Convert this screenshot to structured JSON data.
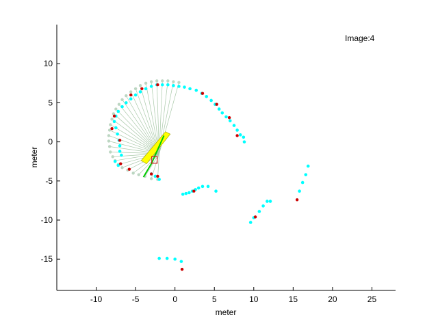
{
  "chart_data": {
    "type": "scatter",
    "title": "",
    "xlabel": "meter",
    "ylabel": "meter",
    "xlim": [
      -15,
      28
    ],
    "ylim": [
      -19,
      15
    ],
    "xticks": [
      -10,
      -5,
      0,
      5,
      10,
      15,
      20,
      25
    ],
    "yticks": [
      -15,
      -10,
      -5,
      0,
      5,
      10
    ],
    "grid": false,
    "annotation": "Image:4",
    "sensor_origin": [
      -2.0,
      -1.5
    ],
    "colors": {
      "scan": "#bcd6c2",
      "ray": "#a8c8a8",
      "landmark": "#00ffff",
      "feature": "#cc0000",
      "robot_body": "#ffff00",
      "robot_path": "#00cc00",
      "robot_marker": "#cc0000"
    },
    "scan_points": [
      [
        -2.2,
        -4.8
      ],
      [
        -3.0,
        -4.7
      ],
      [
        -3.8,
        -4.4
      ],
      [
        -4.6,
        -4.2
      ],
      [
        -5.3,
        -4.0
      ],
      [
        -6.0,
        -3.6
      ],
      [
        -6.7,
        -3.3
      ],
      [
        -7.2,
        -2.9
      ],
      [
        -7.6,
        -2.4
      ],
      [
        -7.9,
        -1.9
      ],
      [
        -8.2,
        -1.3
      ],
      [
        -8.3,
        -0.6
      ],
      [
        -8.4,
        0.1
      ],
      [
        -8.4,
        0.8
      ],
      [
        -8.3,
        1.5
      ],
      [
        -8.2,
        2.2
      ],
      [
        -8.0,
        2.9
      ],
      [
        -7.8,
        3.6
      ],
      [
        -7.5,
        4.2
      ],
      [
        -7.1,
        4.8
      ],
      [
        -6.7,
        5.4
      ],
      [
        -6.2,
        5.9
      ],
      [
        -5.6,
        6.4
      ],
      [
        -5.0,
        6.8
      ],
      [
        -4.4,
        7.2
      ],
      [
        -3.7,
        7.5
      ],
      [
        -3.0,
        7.7
      ],
      [
        -2.3,
        7.8
      ],
      [
        -1.6,
        7.8
      ],
      [
        -0.9,
        7.8
      ],
      [
        -0.2,
        7.7
      ],
      [
        0.5,
        7.6
      ]
    ],
    "landmarks": [
      [
        -7.2,
        -3.0
      ],
      [
        -7.6,
        -2.5
      ],
      [
        -6.8,
        -1.7
      ],
      [
        -7.0,
        -1.2
      ],
      [
        -7.0,
        -0.5
      ],
      [
        -7.1,
        0.2
      ],
      [
        -7.3,
        1.0
      ],
      [
        -7.5,
        1.8
      ],
      [
        -7.7,
        2.6
      ],
      [
        -7.5,
        3.3
      ],
      [
        -7.2,
        3.9
      ],
      [
        -6.7,
        4.5
      ],
      [
        -6.2,
        5.0
      ],
      [
        -5.6,
        5.5
      ],
      [
        -5.0,
        6.0
      ],
      [
        -4.4,
        6.4
      ],
      [
        -3.7,
        6.8
      ],
      [
        -3.0,
        7.1
      ],
      [
        -2.3,
        7.3
      ],
      [
        -1.6,
        7.3
      ],
      [
        -0.9,
        7.3
      ],
      [
        -0.2,
        7.2
      ],
      [
        0.5,
        7.1
      ],
      [
        1.2,
        7.0
      ],
      [
        1.9,
        6.8
      ],
      [
        2.7,
        6.6
      ],
      [
        3.4,
        6.2
      ],
      [
        4.0,
        5.8
      ],
      [
        4.6,
        5.3
      ],
      [
        5.1,
        4.8
      ],
      [
        5.6,
        4.2
      ],
      [
        6.0,
        3.7
      ],
      [
        6.5,
        3.2
      ],
      [
        7.0,
        2.7
      ],
      [
        7.5,
        2.1
      ],
      [
        7.9,
        1.5
      ],
      [
        8.3,
        0.9
      ],
      [
        8.7,
        0.6
      ],
      [
        8.8,
        0.0
      ],
      [
        -3.0,
        -4.1
      ],
      [
        -2.5,
        -4.4
      ],
      [
        -2.0,
        -4.8
      ],
      [
        1.0,
        -6.7
      ],
      [
        1.4,
        -6.6
      ],
      [
        1.8,
        -6.5
      ],
      [
        2.2,
        -6.3
      ],
      [
        2.6,
        -6.1
      ],
      [
        3.0,
        -5.9
      ],
      [
        3.5,
        -5.7
      ],
      [
        4.2,
        -5.7
      ],
      [
        5.2,
        -6.3
      ],
      [
        9.6,
        -10.3
      ],
      [
        10.0,
        -9.7
      ],
      [
        10.7,
        -8.9
      ],
      [
        11.2,
        -8.2
      ],
      [
        11.7,
        -7.6
      ],
      [
        12.1,
        -7.6
      ],
      [
        15.8,
        -6.3
      ],
      [
        16.2,
        -5.2
      ],
      [
        16.6,
        -4.2
      ],
      [
        16.9,
        -3.1
      ],
      [
        -2.0,
        -14.9
      ],
      [
        -1.0,
        -14.9
      ],
      [
        0.0,
        -15.0
      ],
      [
        0.8,
        -15.3
      ]
    ],
    "features": [
      [
        -6.9,
        -2.8
      ],
      [
        -7.0,
        0.2
      ],
      [
        -8.0,
        1.7
      ],
      [
        -7.7,
        3.3
      ],
      [
        -5.6,
        6.0
      ],
      [
        -4.2,
        6.8
      ],
      [
        -2.2,
        7.3
      ],
      [
        3.5,
        6.2
      ],
      [
        5.3,
        4.8
      ],
      [
        6.9,
        3.1
      ],
      [
        7.9,
        0.8
      ],
      [
        -5.8,
        -3.5
      ],
      [
        -3.0,
        -4.1
      ],
      [
        -2.2,
        -4.4
      ],
      [
        2.4,
        -6.3
      ],
      [
        10.2,
        -9.6
      ],
      [
        15.5,
        -7.4
      ],
      [
        0.9,
        -16.3
      ]
    ],
    "robot": {
      "body_polygon": [
        [
          -1.2,
          1.3
        ],
        [
          -0.6,
          1.0
        ],
        [
          -3.6,
          -2.8
        ],
        [
          -4.3,
          -2.4
        ]
      ],
      "path": [
        [
          -1.4,
          0.8
        ],
        [
          -2.2,
          -1.0
        ],
        [
          -3.0,
          -2.8
        ],
        [
          -4.0,
          -4.5
        ]
      ],
      "marker": [
        -2.6,
        -2.3
      ]
    }
  }
}
